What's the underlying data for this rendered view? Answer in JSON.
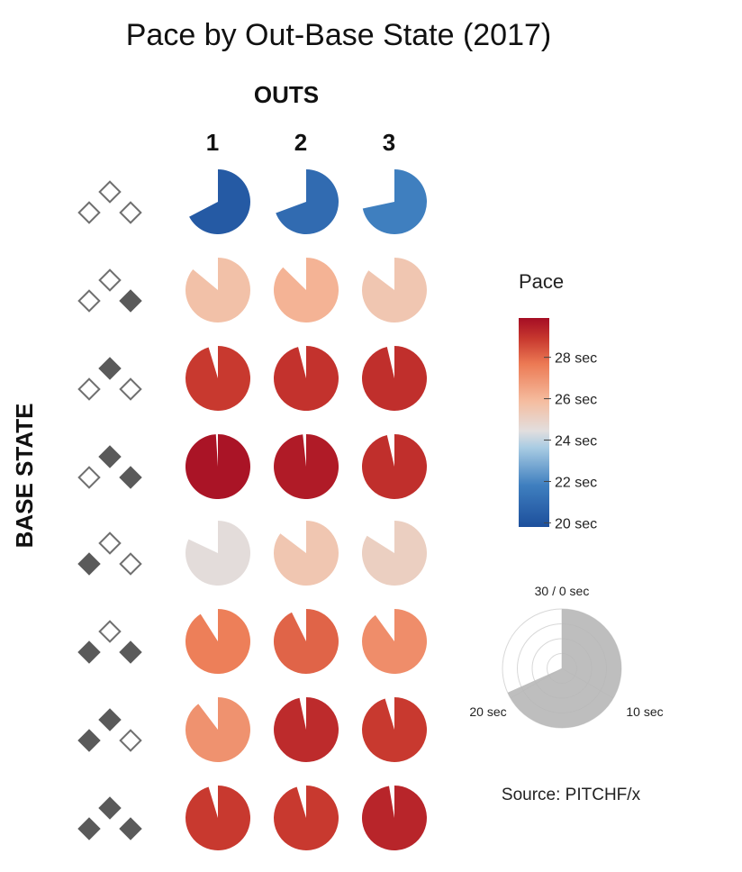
{
  "chart_data": {
    "type": "pie",
    "title": "Pace by Out-Base State (2017)",
    "xlabel": "OUTS",
    "ylabel": "BASE STATE",
    "outs": [
      "1",
      "2",
      "3"
    ],
    "base_states": [
      {
        "first": false,
        "second": false,
        "third": false
      },
      {
        "first": true,
        "second": false,
        "third": false
      },
      {
        "first": false,
        "second": true,
        "third": false
      },
      {
        "first": true,
        "second": true,
        "third": false
      },
      {
        "first": false,
        "second": false,
        "third": true
      },
      {
        "first": true,
        "second": false,
        "third": true
      },
      {
        "first": false,
        "second": true,
        "third": true
      },
      {
        "first": true,
        "second": true,
        "third": true
      }
    ],
    "values_sec": [
      [
        20.2,
        20.8,
        21.5
      ],
      [
        25.8,
        26.2,
        25.6
      ],
      [
        28.6,
        28.8,
        28.9
      ],
      [
        29.7,
        29.5,
        28.9
      ],
      [
        24.6,
        25.6,
        25.2
      ],
      [
        27.3,
        27.8,
        27.0
      ],
      [
        26.9,
        29.0,
        28.6
      ],
      [
        28.6,
        28.6,
        29.2
      ]
    ],
    "colorbar": {
      "title": "Pace",
      "min": 19.8,
      "max": 29.9,
      "ticks": [
        {
          "value": 28,
          "label": "28 sec"
        },
        {
          "value": 26,
          "label": "26 sec"
        },
        {
          "value": 24,
          "label": "24 sec"
        },
        {
          "value": 22,
          "label": "22 sec"
        },
        {
          "value": 20,
          "label": "20 sec"
        }
      ]
    },
    "key": {
      "labels": [
        "30 / 0 sec",
        "10 sec",
        "20 sec"
      ],
      "example_value": 20.5
    },
    "source": "Source: PITCHF/x"
  },
  "colors": {
    "marker_filled": "#5a5a5a",
    "marker_outline": "#6f6f6f",
    "key_fill": "#b7b7b7",
    "scale": [
      "#1d4f9c",
      "#3f7fbf",
      "#a9cce3",
      "#e6dcd8",
      "#f5bda0",
      "#ec7a54",
      "#c8392f",
      "#a50d24"
    ]
  }
}
